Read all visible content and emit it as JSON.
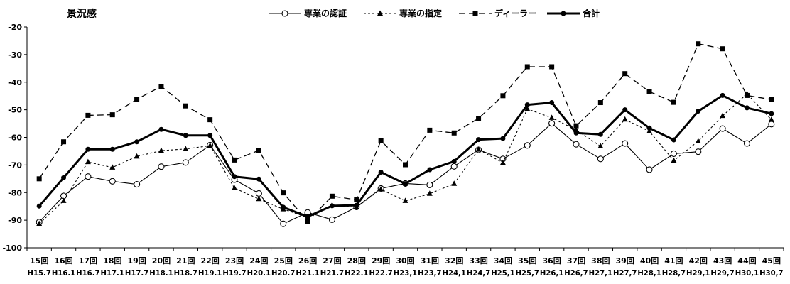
{
  "chart_data": {
    "type": "line",
    "title": "景況感",
    "ylim": [
      -100,
      -20
    ],
    "yticks": [
      -20,
      -30,
      -40,
      -50,
      -60,
      -70,
      -80,
      -90,
      -100
    ],
    "grid": false,
    "legend_position": "top",
    "categories": [
      "15回",
      "16回",
      "17回",
      "18回",
      "19回",
      "20回",
      "21回",
      "22回",
      "23回",
      "24回",
      "25回",
      "26回",
      "27回",
      "28回",
      "29回",
      "30回",
      "31回",
      "32回",
      "33回",
      "34回",
      "35回",
      "36回",
      "37回",
      "38回",
      "39回",
      "40回",
      "41回",
      "42回",
      "43回",
      "44回",
      "45回"
    ],
    "subcategories": [
      "H15.7",
      "H16.1",
      "H16.7",
      "H17.1",
      "H17.7",
      "H18.1",
      "H18.7",
      "H19.1",
      "H19.7",
      "H20.1",
      "H20.7",
      "H21.1",
      "H21.7",
      "H22.1",
      "H22.7",
      "H23,1",
      "H23,7",
      "H24,1",
      "H24,7",
      "H25,1",
      "H25,7",
      "H26,1",
      "H26,7",
      "H27,1",
      "H27,7",
      "H28,1",
      "H28,7",
      "H29,1",
      "H29,7",
      "H30,1",
      "H30,7"
    ],
    "series": [
      {
        "name": "専業の認証",
        "style": "solid-open-circle",
        "color": "#000000",
        "values": [
          -90.7,
          -81.2,
          -74.2,
          -75.9,
          -77.0,
          -70.6,
          -69.1,
          -62.8,
          -75.3,
          -80.3,
          -91.3,
          -87.2,
          -89.8,
          -85.2,
          -78.5,
          -76.7,
          -77.2,
          -70.5,
          -64.5,
          -67.8,
          -62.9,
          -54.9,
          -62.5,
          -67.8,
          -62.2,
          -71.7,
          -65.9,
          -65.2,
          -56.8,
          -62.2,
          -55.2
        ]
      },
      {
        "name": "専業の指定",
        "style": "short-dash-triangle",
        "color": "#000000",
        "values": [
          -91.3,
          -83.0,
          -68.9,
          -70.9,
          -66.9,
          -64.8,
          -64.2,
          -63.0,
          -78.4,
          -82.3,
          -86.0,
          -89.0,
          -84.6,
          -85.3,
          -78.8,
          -83.0,
          -80.4,
          -76.8,
          -64.4,
          -69.2,
          -49.7,
          -52.9,
          -57.3,
          -63.2,
          -53.5,
          -57.8,
          -68.4,
          -61.4,
          -52.2,
          -44.2,
          -53.6
        ]
      },
      {
        "name": "ディーラー",
        "style": "long-dash-square",
        "color": "#000000",
        "values": [
          -75.0,
          -61.6,
          -52.0,
          -51.8,
          -46.2,
          -41.5,
          -48.6,
          -53.6,
          -68.2,
          -64.7,
          -80.1,
          -90.4,
          -81.3,
          -82.6,
          -61.2,
          -69.9,
          -57.4,
          -58.4,
          -53.1,
          -44.9,
          -34.4,
          -34.4,
          -55.8,
          -47.4,
          -36.9,
          -43.4,
          -47.3,
          -26.1,
          -27.9,
          -44.8,
          -46.3
        ]
      },
      {
        "name": "合計",
        "style": "thick-solid-dot",
        "color": "#000000",
        "values": [
          -84.9,
          -74.6,
          -64.3,
          -64.3,
          -61.6,
          -57.1,
          -59.3,
          -59.3,
          -74.2,
          -75.1,
          -85.3,
          -88.7,
          -84.8,
          -84.6,
          -72.6,
          -76.8,
          -71.7,
          -68.7,
          -60.8,
          -60.4,
          -48.2,
          -47.4,
          -58.4,
          -58.9,
          -50.0,
          -56.6,
          -60.9,
          -50.5,
          -44.8,
          -49.3,
          -51.4
        ]
      }
    ]
  }
}
